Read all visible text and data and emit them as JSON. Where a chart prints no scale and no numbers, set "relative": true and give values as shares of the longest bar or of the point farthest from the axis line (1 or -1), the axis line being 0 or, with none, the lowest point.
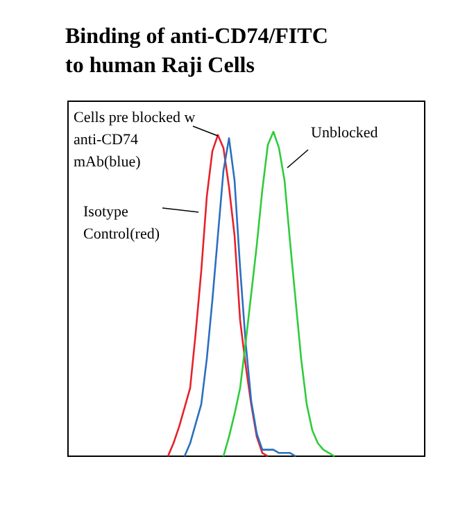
{
  "chart_data": {
    "type": "line",
    "title": "Binding of anti-CD74/FITC to human Raji Cells",
    "relative": true,
    "legend": false,
    "line_style": "solid",
    "categories": [
      null,
      null,
      null,
      null,
      null,
      null,
      null,
      null,
      null,
      null,
      null,
      null,
      null,
      null,
      null,
      null,
      null,
      null,
      null,
      null,
      null,
      null,
      null,
      null,
      null,
      null,
      null,
      null,
      null,
      null,
      null,
      null,
      null,
      null,
      null,
      null,
      null,
      null,
      null,
      null,
      null,
      null,
      null,
      null,
      null,
      null,
      null,
      null,
      null,
      null,
      null,
      null,
      null,
      null,
      null,
      null,
      null,
      null,
      null,
      null,
      null,
      null,
      null,
      null,
      null
    ],
    "series": [
      {
        "name": "Isotype Control(red)",
        "color": "#e8202a",
        "values": [
          null,
          null,
          null,
          null,
          null,
          null,
          null,
          null,
          null,
          null,
          null,
          null,
          null,
          null,
          null,
          null,
          null,
          null,
          0,
          0.04,
          0.09,
          0.15,
          0.21,
          0.38,
          0.57,
          0.8,
          0.94,
          0.99,
          0.95,
          0.83,
          0.68,
          0.42,
          0.28,
          0.16,
          0.06,
          0.01,
          0,
          null,
          null,
          null,
          null,
          null,
          null,
          null,
          null,
          null,
          null,
          null,
          null,
          null,
          null,
          null,
          null,
          null,
          null,
          null,
          null,
          null,
          null,
          null,
          null,
          null,
          null,
          null,
          null
        ]
      },
      {
        "name": "Cells pre blocked w anti-CD74 mAb(blue)",
        "color": "#2a6fc0",
        "values": [
          null,
          null,
          null,
          null,
          null,
          null,
          null,
          null,
          null,
          null,
          null,
          null,
          null,
          null,
          null,
          null,
          null,
          null,
          null,
          null,
          null,
          0,
          0.04,
          0.1,
          0.16,
          0.3,
          0.48,
          0.68,
          0.88,
          0.98,
          0.85,
          0.58,
          0.35,
          0.17,
          0.07,
          0.02,
          0.02,
          0.02,
          0.01,
          0.01,
          0.01,
          0,
          null,
          null,
          null,
          null,
          null,
          null,
          null,
          null,
          null,
          null,
          null,
          null,
          null,
          null,
          null,
          null,
          null,
          null,
          null,
          null,
          null,
          null,
          null
        ]
      },
      {
        "name": "Unblocked",
        "color": "#2ecc3a",
        "values": [
          null,
          null,
          null,
          null,
          null,
          null,
          null,
          null,
          null,
          null,
          null,
          null,
          null,
          null,
          null,
          null,
          null,
          null,
          null,
          null,
          null,
          null,
          null,
          null,
          null,
          null,
          null,
          null,
          0,
          0.06,
          0.13,
          0.21,
          0.35,
          0.5,
          0.65,
          0.82,
          0.96,
          1,
          0.95,
          0.85,
          0.66,
          0.48,
          0.3,
          0.16,
          0.08,
          0.04,
          0.02,
          0.01,
          0,
          null,
          null,
          null,
          null,
          null,
          null,
          null,
          null,
          null,
          null,
          null,
          null,
          null,
          null,
          null,
          null
        ]
      }
    ]
  }
}
